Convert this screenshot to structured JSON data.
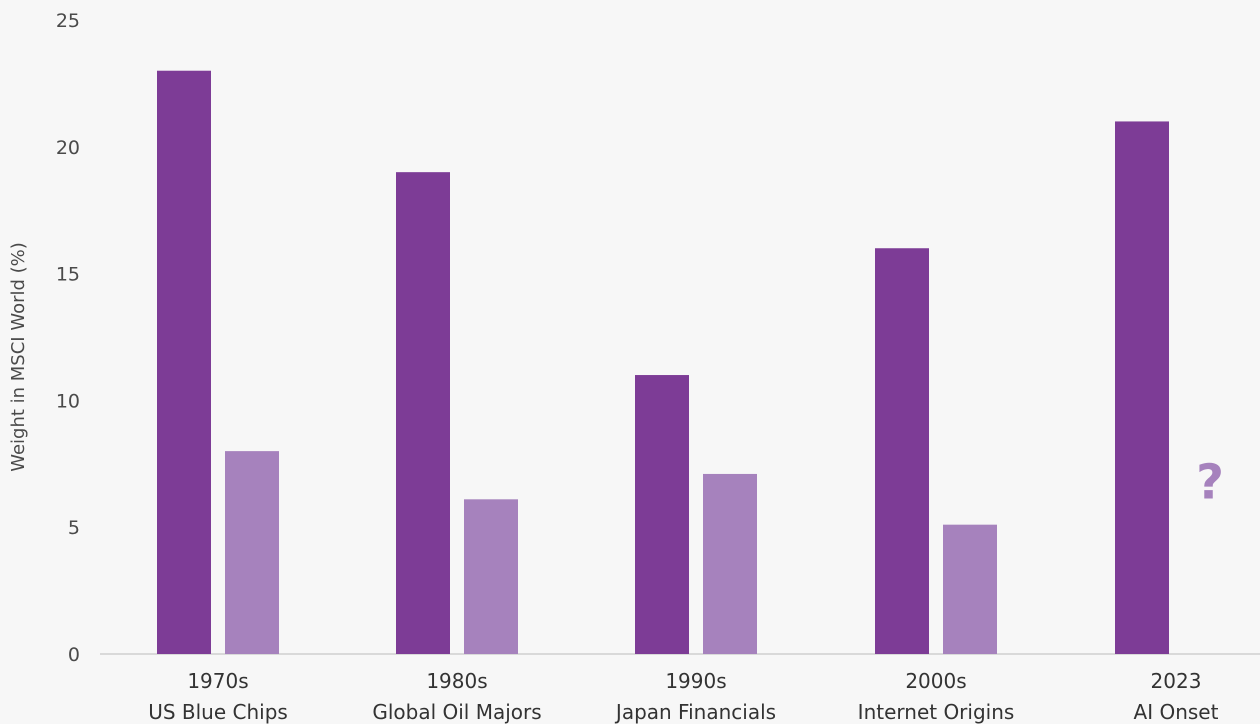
{
  "chart_data": {
    "type": "bar",
    "title": "",
    "xlabel": "",
    "ylabel": "Weight in MSCI World (%)",
    "ylim": [
      0,
      25
    ],
    "yticks": [
      0,
      5,
      10,
      15,
      20,
      25
    ],
    "grid": false,
    "legend": "none",
    "categories": [
      {
        "line1": "1970s",
        "line2": "US Blue Chips"
      },
      {
        "line1": "1980s",
        "line2": "Global Oil Majors"
      },
      {
        "line1": "1990s",
        "line2": "Japan Financials"
      },
      {
        "line1": "2000s",
        "line2": "Internet Origins"
      },
      {
        "line1": "2023",
        "line2": "AI Onset"
      }
    ],
    "series": [
      {
        "values": [
          23,
          19,
          11,
          16,
          21
        ],
        "color": "#7d3c96"
      },
      {
        "values": [
          8,
          6.1,
          7.1,
          5.1,
          null
        ],
        "color": "#a682bd"
      }
    ],
    "annotations": [
      {
        "text": "?",
        "category_index": 4,
        "series_index": 1,
        "y": 6.8,
        "color": "#a682bd"
      }
    ]
  }
}
